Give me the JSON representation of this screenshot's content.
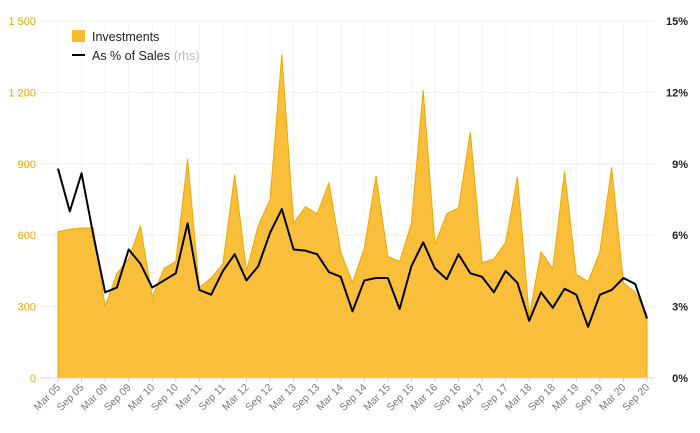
{
  "chart_data": {
    "type": "area",
    "x_tick_labels": [
      "Mar 05",
      "Sep 05",
      "Mar 09",
      "Sep 09",
      "Mar 10",
      "Sep 10",
      "Mar 11",
      "Sep 11",
      "Mar 12",
      "Sep 12",
      "Mar 13",
      "Sep 13",
      "Mar 14",
      "Sep 14",
      "Mar 15",
      "Sep 15",
      "Mar 16",
      "Sep 16",
      "Mar 17",
      "Sep 17",
      "Mar 18",
      "Sep 18",
      "Mar 19",
      "Sep 19",
      "Mar 20",
      "Sep 20"
    ],
    "y_left": {
      "ticks": [
        "0",
        "300",
        "600",
        "900",
        "1 200",
        "1 500"
      ],
      "lim": [
        0,
        1500
      ],
      "color": "#F0A500"
    },
    "y_right": {
      "ticks": [
        "0%",
        "3%",
        "6%",
        "9%",
        "12%",
        "15%"
      ],
      "lim": [
        0,
        15
      ],
      "color": "#222222"
    },
    "legend": {
      "position": "top-left",
      "items": [
        {
          "label": "Investments",
          "suffix": "",
          "kind": "area",
          "color": "#F9BB2F"
        },
        {
          "label": "As % of Sales",
          "suffix": "(rhs)",
          "kind": "line",
          "color": "#000000"
        }
      ]
    },
    "series": [
      {
        "name": "Investments",
        "axis": "left",
        "kind": "area",
        "color": "#F9BB2F",
        "values": [
          615,
          625,
          630,
          630,
          300,
          440,
          500,
          640,
          340,
          460,
          490,
          920,
          380,
          420,
          480,
          855,
          450,
          640,
          750,
          1360,
          650,
          720,
          690,
          820,
          530,
          400,
          545,
          850,
          510,
          490,
          650,
          1210,
          560,
          690,
          715,
          1035,
          485,
          500,
          570,
          845,
          260,
          530,
          460,
          870,
          435,
          405,
          530,
          885,
          400,
          360,
          265
        ]
      },
      {
        "name": "As % of Sales",
        "axis": "right",
        "kind": "line",
        "color": "#000000",
        "values": [
          8.8,
          7.0,
          8.6,
          6.0,
          3.6,
          3.8,
          5.4,
          4.8,
          3.8,
          4.1,
          4.4,
          6.5,
          3.7,
          3.5,
          4.5,
          5.2,
          4.1,
          4.7,
          6.1,
          7.1,
          5.4,
          5.35,
          5.2,
          4.45,
          4.25,
          2.8,
          4.1,
          4.2,
          4.2,
          2.9,
          4.7,
          5.7,
          4.6,
          4.15,
          5.2,
          4.4,
          4.25,
          3.6,
          4.5,
          4.0,
          2.4,
          3.6,
          2.95,
          3.75,
          3.5,
          2.15,
          3.5,
          3.7,
          4.2,
          3.95,
          2.5
        ]
      }
    ]
  }
}
